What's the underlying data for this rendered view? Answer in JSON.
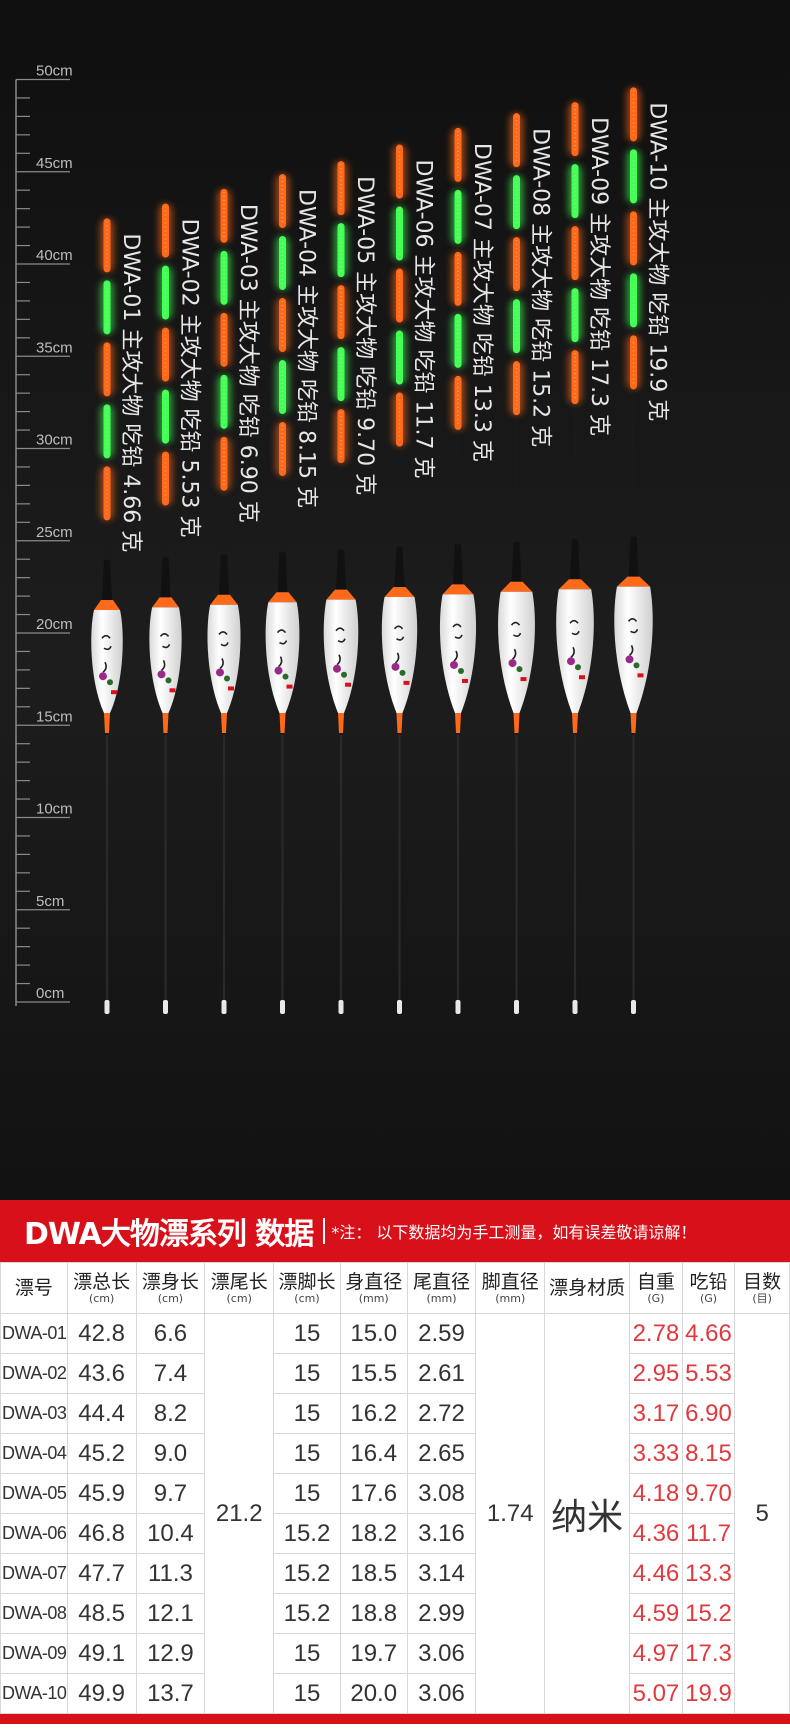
{
  "ruler": {
    "labels": [
      "50cm",
      "45cm",
      "40cm",
      "35cm",
      "30cm",
      "25cm",
      "20cm",
      "15cm",
      "10cm",
      "5cm",
      "0cm"
    ]
  },
  "floats": [
    {
      "label": "DWA-01 主攻大物 吃铅 4.66 克"
    },
    {
      "label": "DWA-02 主攻大物 吃铅 5.53 克"
    },
    {
      "label": "DWA-03 主攻大物 吃铅 6.90 克"
    },
    {
      "label": "DWA-04 主攻大物 吃铅 8.15 克"
    },
    {
      "label": "DWA-05 主攻大物 吃铅 9.70 克"
    },
    {
      "label": "DWA-06 主攻大物 吃铅 11.7 克"
    },
    {
      "label": "DWA-07 主攻大物 吃铅 13.3 克"
    },
    {
      "label": "DWA-08 主攻大物 吃铅 15.2 克"
    },
    {
      "label": "DWA-09 主攻大物 吃铅 17.3 克"
    },
    {
      "label": "DWA-10 主攻大物 吃铅 19.9 克"
    }
  ],
  "banner": {
    "title": "DWA大物漂系列 数据",
    "note": "*注：  以下数据均为手工测量，如有误差敬请谅解！"
  },
  "table": {
    "headers": [
      {
        "name": "漂号",
        "unit": ""
      },
      {
        "name": "漂总长",
        "unit": "(cm)"
      },
      {
        "name": "漂身长",
        "unit": "(cm)"
      },
      {
        "name": "漂尾长",
        "unit": "(cm)"
      },
      {
        "name": "漂脚长",
        "unit": "(cm)"
      },
      {
        "name": "身直径",
        "unit": "(mm)"
      },
      {
        "name": "尾直径",
        "unit": "(mm)"
      },
      {
        "name": "脚直径",
        "unit": "(mm)"
      },
      {
        "name": "漂身材质",
        "unit": ""
      },
      {
        "name": "自重",
        "unit": "(G)"
      },
      {
        "name": "吃铅",
        "unit": "(G)"
      },
      {
        "name": "目数",
        "unit": "(目)"
      }
    ],
    "shared": {
      "tail_length": "21.2",
      "foot_diameter": "1.74",
      "material": "纳米",
      "mesh": "5"
    },
    "rows": [
      {
        "id": "DWA-01",
        "total": "42.8",
        "body": "6.6",
        "foot": "15",
        "body_dia": "15.0",
        "tail_dia": "2.59",
        "weight": "2.78",
        "lead": "4.66"
      },
      {
        "id": "DWA-02",
        "total": "43.6",
        "body": "7.4",
        "foot": "15",
        "body_dia": "15.5",
        "tail_dia": "2.61",
        "weight": "2.95",
        "lead": "5.53"
      },
      {
        "id": "DWA-03",
        "total": "44.4",
        "body": "8.2",
        "foot": "15",
        "body_dia": "16.2",
        "tail_dia": "2.72",
        "weight": "3.17",
        "lead": "6.90"
      },
      {
        "id": "DWA-04",
        "total": "45.2",
        "body": "9.0",
        "foot": "15",
        "body_dia": "16.4",
        "tail_dia": "2.65",
        "weight": "3.33",
        "lead": "8.15"
      },
      {
        "id": "DWA-05",
        "total": "45.9",
        "body": "9.7",
        "foot": "15",
        "body_dia": "17.6",
        "tail_dia": "3.08",
        "weight": "4.18",
        "lead": "9.70"
      },
      {
        "id": "DWA-06",
        "total": "46.8",
        "body": "10.4",
        "foot": "15.2",
        "body_dia": "18.2",
        "tail_dia": "3.16",
        "weight": "4.36",
        "lead": "11.7"
      },
      {
        "id": "DWA-07",
        "total": "47.7",
        "body": "11.3",
        "foot": "15.2",
        "body_dia": "18.5",
        "tail_dia": "3.14",
        "weight": "4.46",
        "lead": "13.3"
      },
      {
        "id": "DWA-08",
        "total": "48.5",
        "body": "12.1",
        "foot": "15.2",
        "body_dia": "18.8",
        "tail_dia": "2.99",
        "weight": "4.59",
        "lead": "15.2"
      },
      {
        "id": "DWA-09",
        "total": "49.1",
        "body": "12.9",
        "foot": "15",
        "body_dia": "19.7",
        "tail_dia": "3.06",
        "weight": "4.97",
        "lead": "17.3"
      },
      {
        "id": "DWA-10",
        "total": "49.9",
        "body": "13.7",
        "foot": "15",
        "body_dia": "20.0",
        "tail_dia": "3.06",
        "weight": "5.07",
        "lead": "19.9"
      }
    ]
  },
  "colors": {
    "orange": "#ff6a1a",
    "green": "#44ff55",
    "red_banner": "#d8101a",
    "red_text": "#e0393e"
  }
}
